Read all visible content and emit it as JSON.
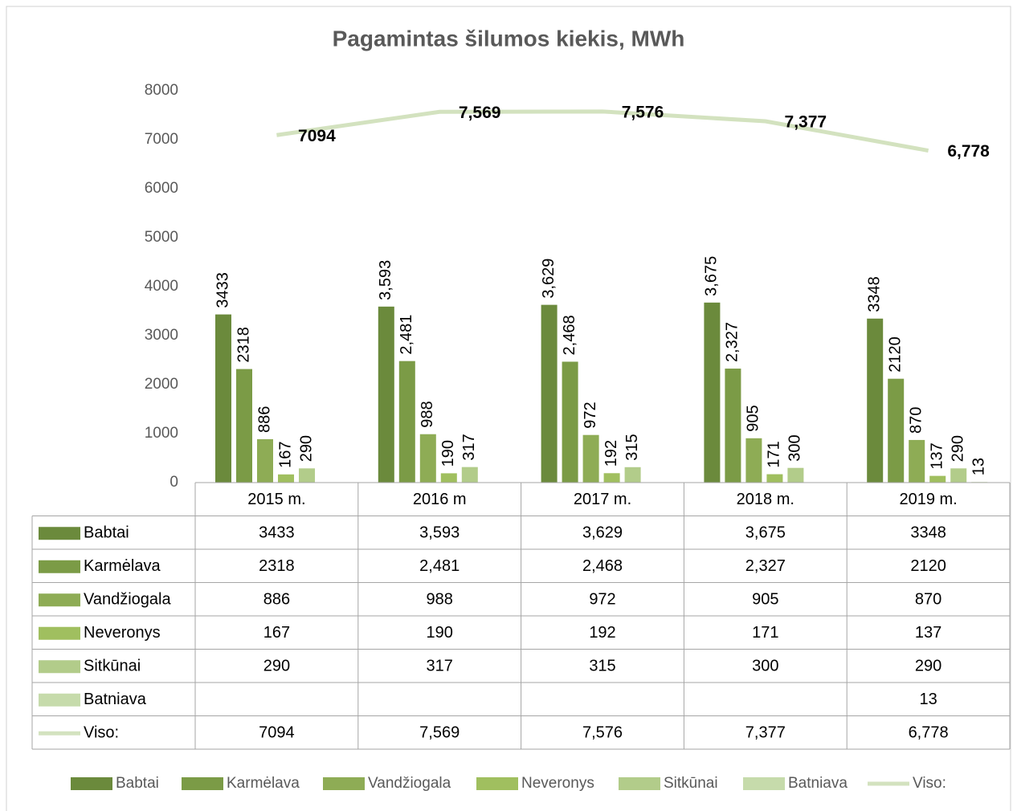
{
  "chart_data": {
    "type": "bar",
    "title": "Pagamintas šilumos kiekis, MWh",
    "categories": [
      "2015 m.",
      "2016 m",
      "2017 m.",
      "2018 m.",
      "2019 m."
    ],
    "ylim": [
      0,
      8000
    ],
    "yticks": [
      0,
      1000,
      2000,
      3000,
      4000,
      5000,
      6000,
      7000,
      8000
    ],
    "grid": false,
    "legend": "bottom",
    "data_table": true,
    "series": [
      {
        "name": "Babtai",
        "color": "#6b8a3c",
        "values": [
          3433,
          3593,
          3629,
          3675,
          3348
        ],
        "value_labels": [
          "3433",
          "3,593",
          "3,629",
          "3,675",
          "3348"
        ]
      },
      {
        "name": "Karmėlava",
        "color": "#7b9b46",
        "values": [
          2318,
          2481,
          2468,
          2327,
          2120
        ],
        "value_labels": [
          "2318",
          "2,481",
          "2,468",
          "2,327",
          "2120"
        ]
      },
      {
        "name": "Vandžiogala",
        "color": "#8eac55",
        "values": [
          886,
          988,
          972,
          905,
          870
        ]
      },
      {
        "name": "Neveronys",
        "color": "#a0bf5f",
        "values": [
          167,
          190,
          192,
          171,
          137
        ]
      },
      {
        "name": "Sitkūnai",
        "color": "#b2cc8a",
        "values": [
          290,
          317,
          315,
          300,
          290
        ]
      },
      {
        "name": "Batniava",
        "color": "#c6dbab",
        "values": [
          null,
          null,
          null,
          null,
          13
        ]
      },
      {
        "name": "Viso:",
        "type": "line",
        "color": "#d3e2bf",
        "values": [
          7094,
          7569,
          7576,
          7377,
          6778
        ],
        "value_labels": [
          "7094",
          "7,569",
          "7,576",
          "7,377",
          "6,778"
        ]
      }
    ]
  }
}
